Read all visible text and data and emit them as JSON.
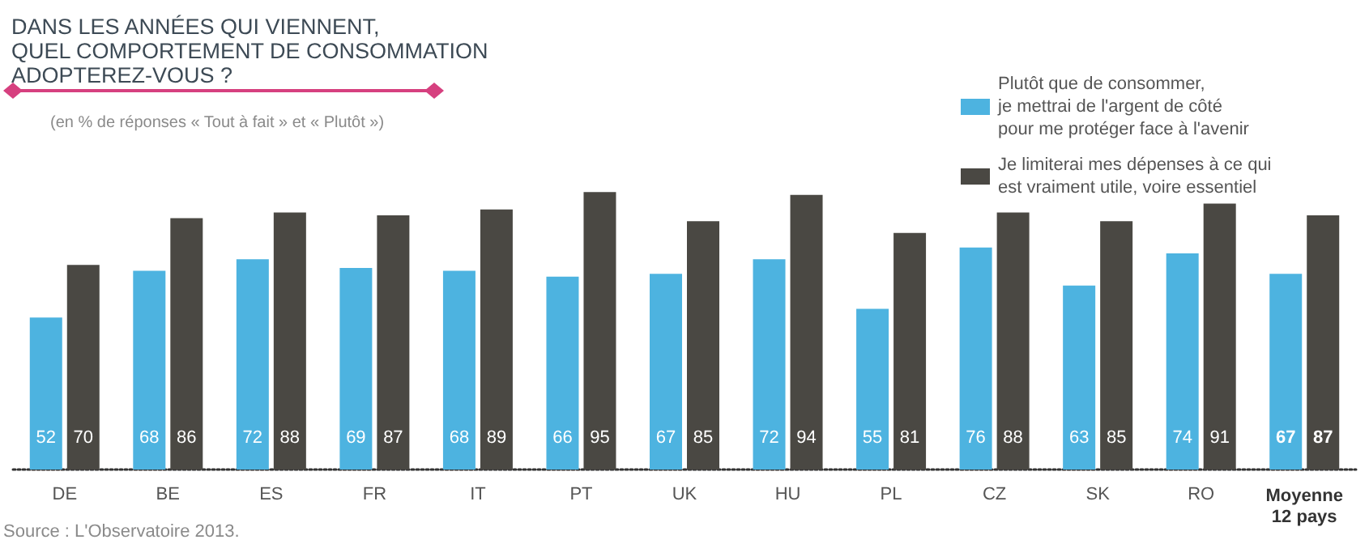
{
  "chart_data": {
    "type": "bar",
    "title": "DANS LES ANNÉES QUI VIENNENT,\nQUEL COMPORTEMENT DE CONSOMMATION\nADOPTEREZ-VOUS ?",
    "subtitle": "(en % de réponses « Tout à fait » et « Plutôt »)",
    "categories": [
      "DE",
      "BE",
      "ES",
      "FR",
      "IT",
      "PT",
      "UK",
      "HU",
      "PL",
      "CZ",
      "SK",
      "RO",
      "Moyenne\n12 pays"
    ],
    "series": [
      {
        "name": "Plutôt que de consommer,\nje mettrai de l'argent de côté\npour me protéger face à l'avenir",
        "color": "#4db3e0",
        "values": [
          52,
          68,
          72,
          69,
          68,
          66,
          67,
          72,
          55,
          76,
          63,
          74,
          67
        ]
      },
      {
        "name": "Je limiterai mes dépenses à ce qui\nest vraiment utile, voire essentiel",
        "color": "#4a4843",
        "values": [
          70,
          86,
          88,
          87,
          89,
          95,
          85,
          94,
          81,
          88,
          85,
          91,
          87
        ]
      }
    ],
    "data_labels": true,
    "legend": "top right",
    "grid": false,
    "annotations": [
      "Source : L'Observatoire 2013."
    ]
  }
}
